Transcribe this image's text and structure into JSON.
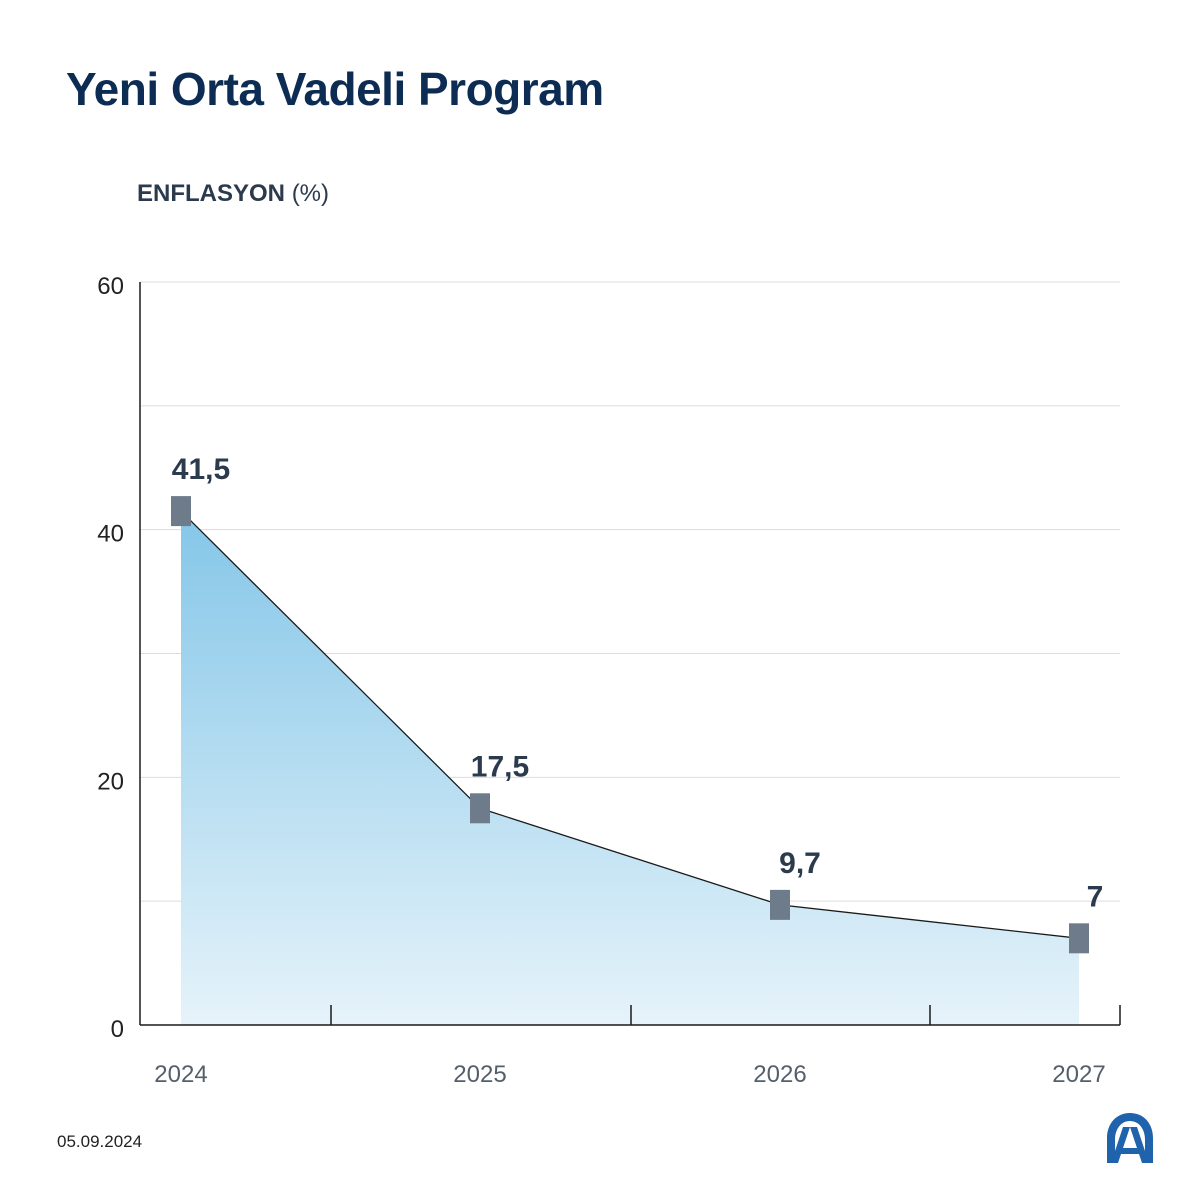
{
  "header": {
    "title": "Yeni Orta Vadeli Program",
    "subtitle_bold": "ENFLASYON",
    "subtitle_unit": "(%)"
  },
  "footer": {
    "date": "05.09.2024",
    "logo_text": "AA"
  },
  "colors": {
    "title": "#0d2c54",
    "marker": "#6e7b8b",
    "area_top": "#84c6e8",
    "area_bottom": "#e6f3fa",
    "line": "#1a1a1a",
    "grid": "#dddddd"
  },
  "chart_data": {
    "type": "area",
    "title": "ENFLASYON (%)",
    "categories": [
      "2024",
      "2025",
      "2026",
      "2027"
    ],
    "values": [
      41.5,
      17.5,
      9.7,
      7
    ],
    "value_labels": [
      "41,5",
      "17,5",
      "9,7",
      "7"
    ],
    "ylim": [
      0,
      60
    ],
    "y_ticks": [
      0,
      20,
      40,
      60
    ],
    "grid": true,
    "legend": "none"
  }
}
